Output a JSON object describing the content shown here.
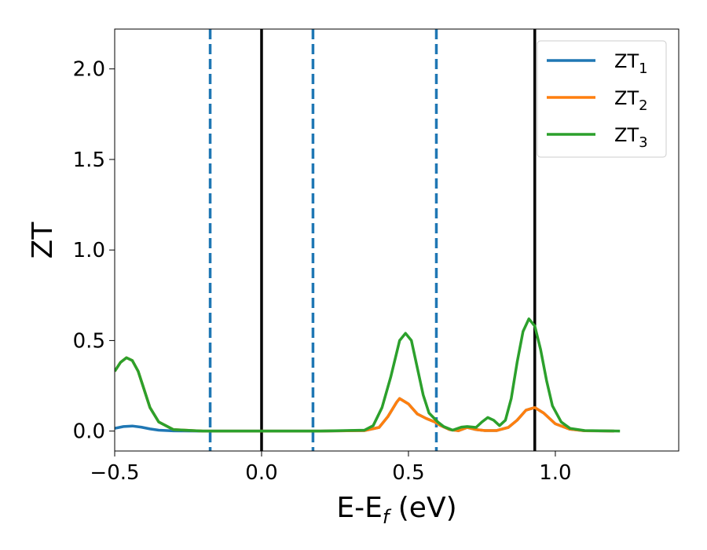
{
  "chart_data": {
    "type": "line",
    "xlabel": "E-E_f (eV)",
    "ylabel": "ZT",
    "xlim": [
      -0.5,
      1.42
    ],
    "ylim": [
      -0.11,
      2.22
    ],
    "xticks": [
      -0.5,
      0.0,
      0.5,
      1.0
    ],
    "xtick_labels": [
      "−0.5",
      "0.0",
      "0.5",
      "1.0"
    ],
    "yticks": [
      0.0,
      0.5,
      1.0,
      1.5,
      2.0
    ],
    "ytick_labels": [
      "0.0",
      "0.5",
      "1.0",
      "1.5",
      "2.0"
    ],
    "grid": false,
    "legend_position": "top-right",
    "vlines": [
      {
        "x": -0.175,
        "style": "dashed",
        "color": "#1f77b4"
      },
      {
        "x": 0.0,
        "style": "solid",
        "color": "#000000"
      },
      {
        "x": 0.175,
        "style": "dashed",
        "color": "#1f77b4"
      },
      {
        "x": 0.595,
        "style": "dashed",
        "color": "#1f77b4"
      },
      {
        "x": 0.93,
        "style": "solid",
        "color": "#000000"
      }
    ],
    "series": [
      {
        "name": "ZT",
        "subscript": "1",
        "color": "#1f77b4",
        "points": [
          [
            -0.5,
            0.015
          ],
          [
            -0.47,
            0.025
          ],
          [
            -0.44,
            0.028
          ],
          [
            -0.41,
            0.022
          ],
          [
            -0.38,
            0.012
          ],
          [
            -0.35,
            0.005
          ],
          [
            -0.3,
            0.001
          ],
          [
            -0.2,
            0.0
          ],
          [
            0.0,
            0.0
          ],
          [
            0.2,
            0.0
          ],
          [
            0.35,
            0.003
          ],
          [
            0.4,
            0.02
          ],
          [
            0.43,
            0.08
          ],
          [
            0.46,
            0.16
          ],
          [
            0.47,
            0.18
          ],
          [
            0.5,
            0.15
          ],
          [
            0.53,
            0.095
          ],
          [
            0.56,
            0.07
          ],
          [
            0.59,
            0.05
          ],
          [
            0.61,
            0.03
          ],
          [
            0.64,
            0.008
          ],
          [
            0.67,
            0.002
          ],
          [
            0.7,
            0.02
          ],
          [
            0.73,
            0.008
          ],
          [
            0.76,
            0.003
          ],
          [
            0.8,
            0.003
          ],
          [
            0.84,
            0.02
          ],
          [
            0.87,
            0.06
          ],
          [
            0.9,
            0.115
          ],
          [
            0.93,
            0.13
          ],
          [
            0.96,
            0.1
          ],
          [
            1.0,
            0.04
          ],
          [
            1.05,
            0.01
          ],
          [
            1.1,
            0.002
          ],
          [
            1.2,
            0.0
          ]
        ]
      },
      {
        "name": "ZT",
        "subscript": "2",
        "color": "#ff7f0e",
        "points": [
          [
            -0.5,
            0.33
          ],
          [
            -0.48,
            0.38
          ],
          [
            -0.46,
            0.405
          ],
          [
            -0.44,
            0.39
          ],
          [
            -0.42,
            0.33
          ],
          [
            -0.4,
            0.23
          ],
          [
            -0.38,
            0.13
          ],
          [
            -0.35,
            0.05
          ],
          [
            -0.3,
            0.008
          ],
          [
            -0.2,
            0.0
          ],
          [
            0.0,
            0.0
          ],
          [
            0.2,
            0.0
          ],
          [
            0.35,
            0.003
          ],
          [
            0.4,
            0.02
          ],
          [
            0.43,
            0.08
          ],
          [
            0.46,
            0.16
          ],
          [
            0.47,
            0.18
          ],
          [
            0.5,
            0.15
          ],
          [
            0.53,
            0.095
          ],
          [
            0.56,
            0.07
          ],
          [
            0.59,
            0.05
          ],
          [
            0.61,
            0.03
          ],
          [
            0.64,
            0.008
          ],
          [
            0.67,
            0.002
          ],
          [
            0.7,
            0.02
          ],
          [
            0.73,
            0.008
          ],
          [
            0.76,
            0.003
          ],
          [
            0.8,
            0.003
          ],
          [
            0.84,
            0.02
          ],
          [
            0.87,
            0.06
          ],
          [
            0.9,
            0.115
          ],
          [
            0.93,
            0.13
          ],
          [
            0.96,
            0.1
          ],
          [
            1.0,
            0.04
          ],
          [
            1.05,
            0.01
          ],
          [
            1.1,
            0.002
          ],
          [
            1.2,
            0.0
          ]
        ]
      },
      {
        "name": "ZT",
        "subscript": "3",
        "color": "#2ca02c",
        "points": [
          [
            -0.5,
            0.33
          ],
          [
            -0.48,
            0.38
          ],
          [
            -0.46,
            0.405
          ],
          [
            -0.44,
            0.39
          ],
          [
            -0.42,
            0.33
          ],
          [
            -0.4,
            0.23
          ],
          [
            -0.38,
            0.13
          ],
          [
            -0.35,
            0.05
          ],
          [
            -0.3,
            0.008
          ],
          [
            -0.2,
            0.0
          ],
          [
            0.0,
            0.0
          ],
          [
            0.2,
            0.0
          ],
          [
            0.35,
            0.005
          ],
          [
            0.38,
            0.03
          ],
          [
            0.41,
            0.13
          ],
          [
            0.44,
            0.3
          ],
          [
            0.47,
            0.5
          ],
          [
            0.49,
            0.54
          ],
          [
            0.51,
            0.5
          ],
          [
            0.53,
            0.35
          ],
          [
            0.55,
            0.2
          ],
          [
            0.57,
            0.1
          ],
          [
            0.6,
            0.05
          ],
          [
            0.62,
            0.025
          ],
          [
            0.65,
            0.005
          ],
          [
            0.68,
            0.022
          ],
          [
            0.7,
            0.025
          ],
          [
            0.73,
            0.02
          ],
          [
            0.75,
            0.05
          ],
          [
            0.77,
            0.075
          ],
          [
            0.79,
            0.06
          ],
          [
            0.81,
            0.03
          ],
          [
            0.83,
            0.06
          ],
          [
            0.85,
            0.18
          ],
          [
            0.87,
            0.38
          ],
          [
            0.89,
            0.55
          ],
          [
            0.91,
            0.62
          ],
          [
            0.93,
            0.58
          ],
          [
            0.95,
            0.45
          ],
          [
            0.97,
            0.28
          ],
          [
            0.99,
            0.14
          ],
          [
            1.02,
            0.05
          ],
          [
            1.05,
            0.015
          ],
          [
            1.1,
            0.003
          ],
          [
            1.22,
            0.0
          ]
        ]
      }
    ]
  }
}
